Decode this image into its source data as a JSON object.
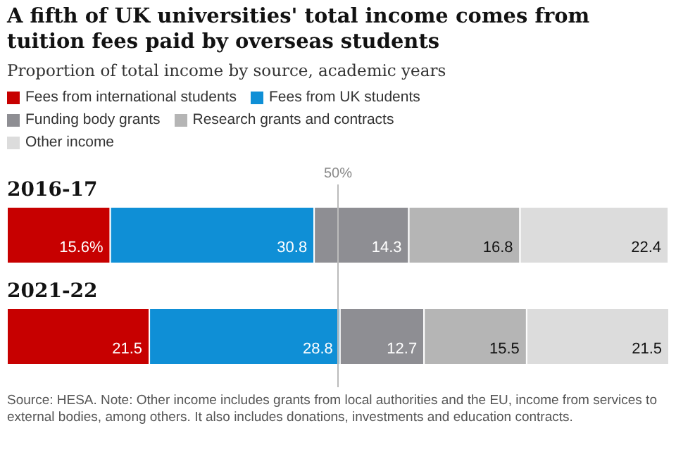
{
  "chart_data": {
    "type": "bar",
    "orientation": "horizontal",
    "stacked": true,
    "title": "A fifth of UK universities' total income comes from tuition fees paid by overseas students",
    "subtitle": "Proportion of total income by source, academic years",
    "categories": [
      "2016-17",
      "2021-22"
    ],
    "series": [
      {
        "name": "Fees from international students",
        "color": "#c70000",
        "values": [
          15.6,
          21.5
        ],
        "value_labels": [
          "15.6%",
          "21.5"
        ]
      },
      {
        "name": "Fees from UK students",
        "color": "#0f8fd6",
        "values": [
          30.8,
          28.8
        ],
        "value_labels": [
          "30.8",
          "28.8"
        ]
      },
      {
        "name": "Funding body grants",
        "color": "#8e8e93",
        "values": [
          14.3,
          12.7
        ],
        "value_labels": [
          "14.3",
          "12.7"
        ]
      },
      {
        "name": "Research grants and contracts",
        "color": "#b5b5b5",
        "values": [
          16.8,
          15.5
        ],
        "value_labels": [
          "16.8",
          "15.5"
        ]
      },
      {
        "name": "Other income",
        "color": "#dcdcdc",
        "values": [
          22.4,
          21.5
        ],
        "value_labels": [
          "22.4",
          "21.5"
        ]
      }
    ],
    "xlim": [
      0,
      100
    ],
    "tick_labels": "y",
    "legend": "top",
    "ref_lines": [
      {
        "axis": "x",
        "value": 50,
        "label": "50%",
        "color": "#bbbbbb"
      }
    ],
    "annotations": [
      "Source: HESA. Note: Other income includes grants from local authorities and the EU, income from services to external bodies, among others. It also includes donations, investments and education contracts."
    ]
  }
}
